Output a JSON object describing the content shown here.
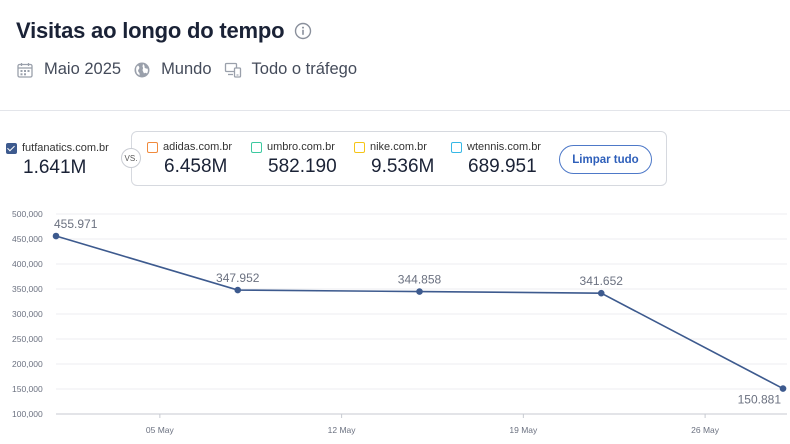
{
  "header": {
    "title": "Visitas ao longo do tempo",
    "info_icon": "info-icon"
  },
  "filters": [
    {
      "icon": "calendar-icon",
      "label": "Maio 2025"
    },
    {
      "icon": "globe-icon",
      "label": "Mundo"
    },
    {
      "icon": "devices-icon",
      "label": "Todo o tráfego"
    }
  ],
  "main_site": {
    "domain": "futfanatics.com.br",
    "value": "1.641M",
    "color": "#3d5a8e"
  },
  "vs_label": "VS.",
  "competitors": [
    {
      "domain": "adidas.com.br",
      "value": "6.458M",
      "color": "#f08a3c"
    },
    {
      "domain": "umbro.com.br",
      "value": "582.190",
      "color": "#3cc9a0"
    },
    {
      "domain": "nike.com.br",
      "value": "9.536M",
      "color": "#f5c518"
    },
    {
      "domain": "wtennis.com.br",
      "value": "689.951",
      "color": "#36b8e6"
    }
  ],
  "clear_button": "Limpar tudo",
  "chart_data": {
    "type": "line",
    "series": [
      {
        "name": "futfanatics.com.br",
        "color": "#3d5a8e",
        "x": [
          "2025-05-01",
          "2025-05-08",
          "2025-05-15",
          "2025-05-22",
          "2025-05-29"
        ],
        "values": [
          455971,
          347952,
          344858,
          341652,
          150881
        ],
        "labels": [
          "455.971",
          "347.952",
          "344.858",
          "341.652",
          "150.881"
        ]
      }
    ],
    "ylim": [
      100000,
      500000
    ],
    "yticks": [
      100000,
      150000,
      200000,
      250000,
      300000,
      350000,
      400000,
      450000,
      500000
    ],
    "ytick_labels": [
      "100,000",
      "150,000",
      "200,000",
      "250,000",
      "300,000",
      "350,000",
      "400,000",
      "450,000",
      "500,000"
    ],
    "xticks": [
      "2025-05-05",
      "2025-05-12",
      "2025-05-19",
      "2025-05-26"
    ],
    "xtick_labels": [
      "05 May",
      "12 May",
      "19 May",
      "26 May"
    ],
    "grid": true
  }
}
